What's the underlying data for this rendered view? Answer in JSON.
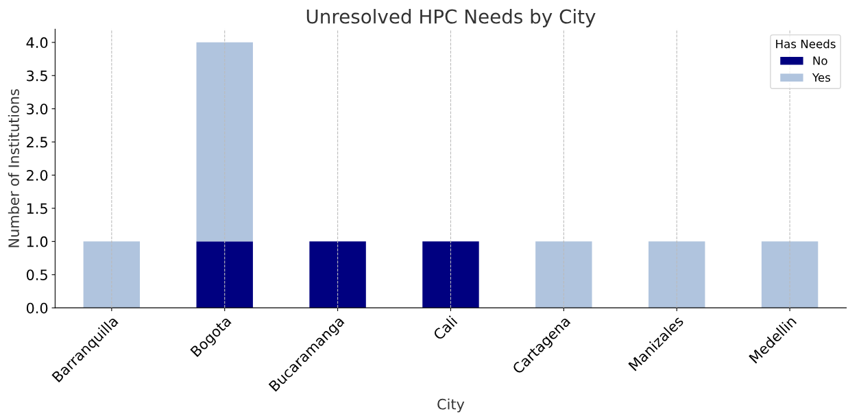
{
  "chart_data": {
    "type": "bar",
    "title": "Unresolved HPC Needs by City",
    "xlabel": "City",
    "ylabel": "Number of Institutions",
    "legend_title": "Has Needs",
    "categories": [
      "Barranquilla",
      "Bogota",
      "Bucaramanga",
      "Cali",
      "Cartagena",
      "Manizales",
      "Medellin"
    ],
    "stacked": true,
    "series": [
      {
        "name": "No",
        "color": "#000080",
        "values": [
          0,
          1,
          1,
          1,
          0,
          0,
          0
        ]
      },
      {
        "name": "Yes",
        "color": "#b0c4de",
        "values": [
          1,
          3,
          0,
          0,
          1,
          1,
          1
        ]
      }
    ],
    "ylim": [
      0,
      4.2
    ],
    "yticks": [
      {
        "value": 0,
        "label": "0.0"
      },
      {
        "value": 0.5,
        "label": "0.5"
      },
      {
        "value": 1,
        "label": "1.0"
      },
      {
        "value": 1.5,
        "label": "1.5"
      },
      {
        "value": 2,
        "label": "2.0"
      },
      {
        "value": 2.5,
        "label": "2.5"
      },
      {
        "value": 3,
        "label": "3.0"
      },
      {
        "value": 3.5,
        "label": "3.5"
      },
      {
        "value": 4,
        "label": "4.0"
      }
    ],
    "grid": "x",
    "legend": "top right"
  }
}
